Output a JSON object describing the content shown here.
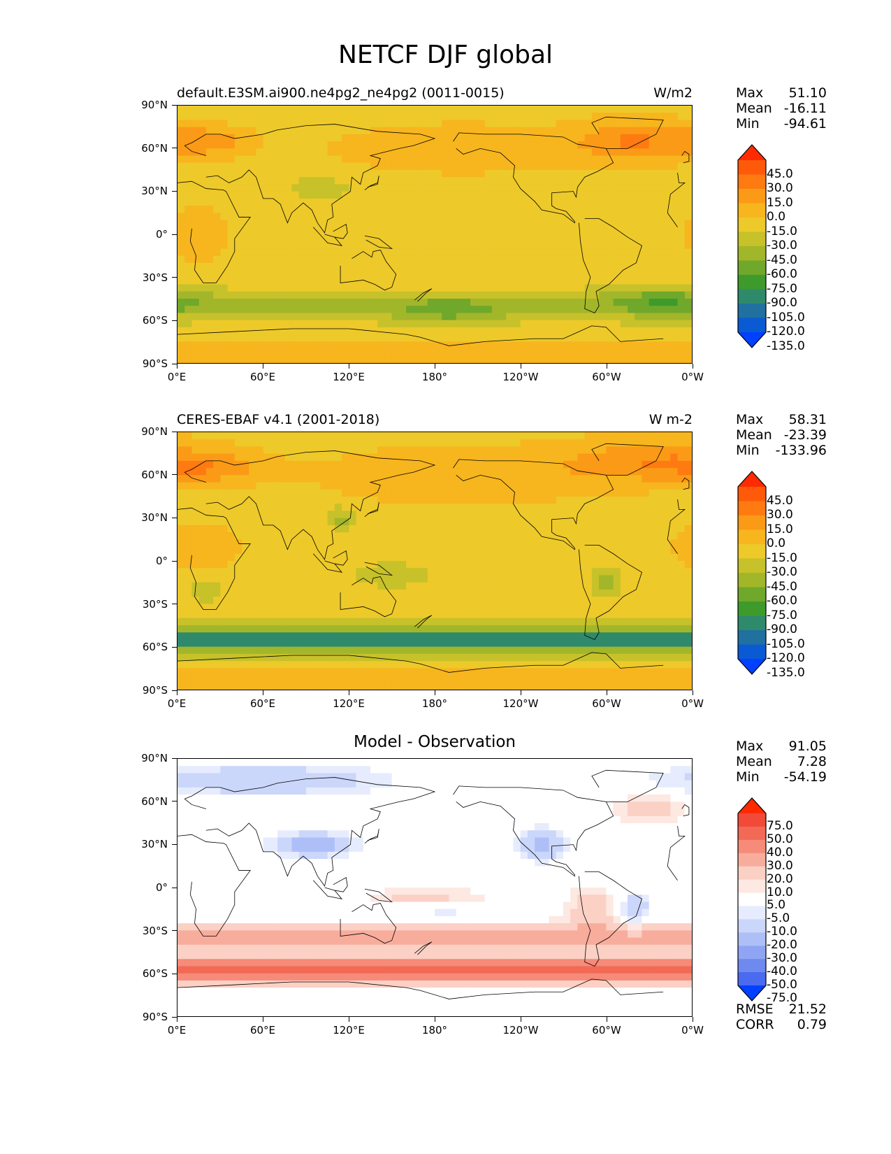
{
  "title": "NETCF DJF global",
  "xticks": [
    "0°E",
    "60°E",
    "120°E",
    "180°",
    "120°W",
    "60°W",
    "0°W"
  ],
  "yticks": [
    "90°N",
    "60°N",
    "30°N",
    "0°",
    "30°S",
    "60°S",
    "90°S"
  ],
  "panels": [
    {
      "id": "model",
      "left_title": "default.E3SM.ai900.ne4pg2_ne4pg2 (0011-0015)",
      "right_title": "W/m2",
      "center_title": "",
      "stats": {
        "max_label": "Max",
        "max": "51.10",
        "mean_label": "Mean",
        "mean": "-16.11",
        "min_label": "Min",
        "min": "-94.61"
      },
      "colorbar": {
        "labels": [
          "45.0",
          "30.0",
          "15.0",
          "0.0",
          "-15.0",
          "-30.0",
          "-45.0",
          "-60.0",
          "-75.0",
          "-90.0",
          "-105.0",
          "-120.0",
          "-135.0"
        ],
        "colors": [
          "#ff2a00",
          "#ff5a0a",
          "#ff7a10",
          "#fb9a16",
          "#f7b51e",
          "#edc92a",
          "#c7c12a",
          "#a2b62a",
          "#6fa82a",
          "#3f9a2c",
          "#2f8a6c",
          "#2070a0",
          "#0a5ad4",
          "#0040ff"
        ]
      },
      "field": "model"
    },
    {
      "id": "obs",
      "left_title": "CERES-EBAF v4.1 (2001-2018)",
      "right_title": "W m-2",
      "center_title": "",
      "stats": {
        "max_label": "Max",
        "max": "58.31",
        "mean_label": "Mean",
        "mean": "-23.39",
        "min_label": "Min",
        "min": "-133.96"
      },
      "colorbar": {
        "labels": [
          "45.0",
          "30.0",
          "15.0",
          "0.0",
          "-15.0",
          "-30.0",
          "-45.0",
          "-60.0",
          "-75.0",
          "-90.0",
          "-105.0",
          "-120.0",
          "-135.0"
        ],
        "colors": [
          "#ff2a00",
          "#ff5a0a",
          "#ff7a10",
          "#fb9a16",
          "#f7b51e",
          "#edc92a",
          "#c7c12a",
          "#a2b62a",
          "#6fa82a",
          "#3f9a2c",
          "#2f8a6c",
          "#2070a0",
          "#0a5ad4",
          "#0040ff"
        ]
      },
      "field": "obs"
    },
    {
      "id": "diff",
      "left_title": "",
      "right_title": "",
      "center_title": "Model - Observation",
      "stats": {
        "max_label": "Max",
        "max": "91.05",
        "mean_label": "Mean",
        "mean": "7.28",
        "min_label": "Min",
        "min": "-54.19"
      },
      "colorbar": {
        "labels": [
          "75.0",
          "50.0",
          "40.0",
          "30.0",
          "20.0",
          "10.0",
          "5.0",
          "-5.0",
          "-10.0",
          "-20.0",
          "-30.0",
          "-40.0",
          "-50.0",
          "-75.0"
        ],
        "colors": [
          "#ff2a00",
          "#f24a38",
          "#f26a55",
          "#f58b78",
          "#f8ad9c",
          "#fbd0c5",
          "#fde8e2",
          "#ffffff",
          "#e6ecfd",
          "#cbd6fb",
          "#aebff8",
          "#8fa5f3",
          "#6f8aee",
          "#4a6af0",
          "#0040ff"
        ]
      },
      "field": "diff"
    }
  ],
  "summary": {
    "rmse_label": "RMSE",
    "rmse": "21.52",
    "corr_label": "CORR",
    "corr": "0.79"
  }
}
